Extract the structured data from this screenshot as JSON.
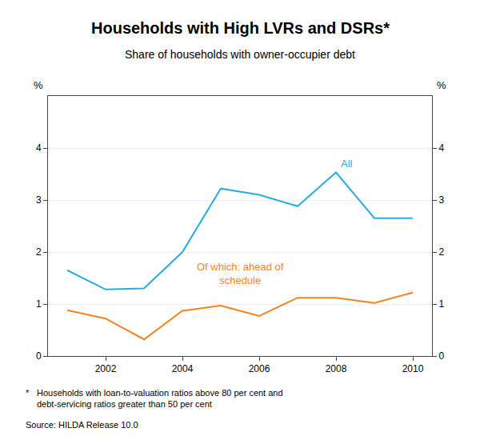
{
  "chart_data": {
    "type": "line",
    "title": "Households with High LVRs and DSRs*",
    "subtitle": "Share of households with owner-occupier debt",
    "ylabel": "%",
    "y2label": "%",
    "footnote_marker": "*",
    "footnote": "Households with loan-to-valuation ratios above 80 per cent and\ndebt-servicing ratios greater than 50 per cent",
    "source": "Source: HILDA Release 10.0",
    "x": [
      2001,
      2002,
      2003,
      2004,
      2005,
      2006,
      2007,
      2008,
      2009,
      2010
    ],
    "series": [
      {
        "name": "All",
        "color": "#29ABE2",
        "values": [
          1.65,
          1.28,
          1.3,
          2.0,
          3.22,
          3.1,
          2.88,
          3.53,
          2.65,
          2.65
        ]
      },
      {
        "name": "Of which: ahead of\nschedule",
        "color": "#F5821F",
        "values": [
          0.88,
          0.72,
          0.32,
          0.87,
          0.97,
          0.77,
          1.12,
          1.12,
          1.02,
          1.22
        ]
      }
    ],
    "xlim": [
      2000.5,
      2010.5
    ],
    "xticks": [
      2002,
      2004,
      2006,
      2008,
      2010
    ],
    "ylim": [
      0,
      5
    ],
    "yticks": [
      0,
      1,
      2,
      3,
      4
    ],
    "y2lim": [
      0,
      5
    ],
    "y2ticks": [
      0,
      1,
      2,
      3,
      4
    ],
    "grid": true
  }
}
